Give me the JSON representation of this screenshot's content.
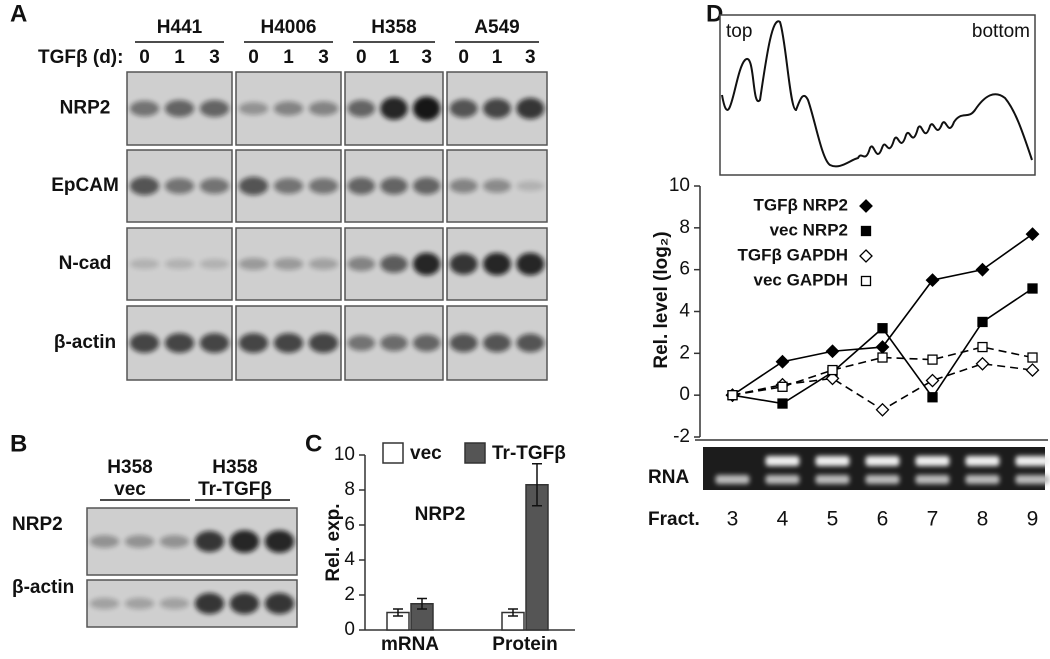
{
  "panels": {
    "A": {
      "label": "A",
      "cell_lines": [
        "H441",
        "H4006",
        "H358",
        "A549"
      ],
      "treatment_label": "TGFβ (d):",
      "days": [
        "0",
        "1",
        "3"
      ],
      "rows": [
        "NRP2",
        "EpCAM",
        "N-cad",
        "β-actin"
      ]
    },
    "B": {
      "label": "B",
      "groups": [
        [
          "H358",
          "vec"
        ],
        [
          "H358",
          "Tr-TGFβ"
        ]
      ],
      "rows": [
        "NRP2",
        "β-actin"
      ]
    },
    "C": {
      "label": "C"
    },
    "D": {
      "label": "D",
      "profile_labels": [
        "top",
        "bottom"
      ],
      "gel_label": "RNA"
    }
  },
  "chart_data": [
    {
      "type": "bar",
      "ylabel": "Rel. exp.",
      "annotation": "NRP2",
      "categories": [
        "mRNA",
        "Protein"
      ],
      "series": [
        {
          "name": "vec",
          "color": "#ffffff",
          "values": [
            1.0,
            1.0
          ],
          "errors": [
            0.2,
            0.2
          ]
        },
        {
          "name": "Tr-TGFβ",
          "color": "#555555",
          "values": [
            1.5,
            8.3
          ],
          "errors": [
            0.3,
            1.2
          ]
        }
      ],
      "ylim": [
        0,
        10
      ],
      "yticks": [
        0,
        2,
        4,
        6,
        8,
        10
      ]
    },
    {
      "type": "line",
      "ylabel": "Rel. level (log₂)",
      "xlabel": "Fract.",
      "x": [
        3,
        4,
        5,
        6,
        7,
        8,
        9
      ],
      "series": [
        {
          "name": "TGFβ NRP2",
          "color": "#000000",
          "marker": "diamond",
          "filled": true,
          "dashed": false,
          "values": [
            0,
            1.6,
            2.1,
            2.3,
            5.5,
            6.0,
            7.7
          ]
        },
        {
          "name": "vec NRP2",
          "color": "#000000",
          "marker": "square",
          "filled": true,
          "dashed": false,
          "values": [
            0,
            -0.4,
            1.1,
            3.2,
            -0.1,
            3.5,
            5.1
          ]
        },
        {
          "name": "TGFβ GAPDH",
          "color": "#000000",
          "marker": "diamond",
          "filled": false,
          "dashed": true,
          "values": [
            0,
            0.5,
            0.8,
            -0.7,
            0.7,
            1.5,
            1.2
          ]
        },
        {
          "name": "vec GAPDH",
          "color": "#000000",
          "marker": "square",
          "filled": false,
          "dashed": true,
          "values": [
            0,
            0.4,
            1.2,
            1.8,
            1.7,
            2.3,
            1.8
          ]
        }
      ],
      "xlim": [
        2.35,
        9.25
      ],
      "ylim": [
        -2,
        10
      ],
      "yticks": [
        -2,
        0,
        2,
        4,
        6,
        8,
        10
      ]
    }
  ]
}
